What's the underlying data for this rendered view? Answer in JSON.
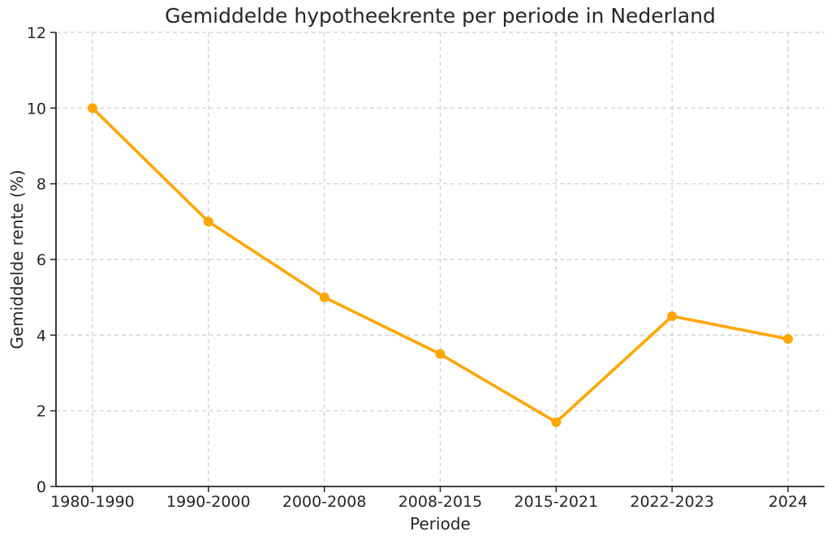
{
  "chart_data": {
    "type": "line",
    "title": "Gemiddelde hypotheekrente per periode in Nederland",
    "xlabel": "Periode",
    "ylabel": "Gemiddelde rente (%)",
    "categories": [
      "1980-1990",
      "1990-2000",
      "2000-2008",
      "2008-2015",
      "2015-2021",
      "2022-2023",
      "2024"
    ],
    "values": [
      10,
      7,
      5,
      3.5,
      1.7,
      4.5,
      3.9
    ],
    "yticks": [
      0,
      2,
      4,
      6,
      8,
      10,
      12
    ],
    "ylim": [
      0,
      12
    ],
    "grid": true,
    "grid_style": "dashed",
    "legend": "none",
    "marker": "circle",
    "colors": {
      "line": "#FFA500",
      "marker": "#FFA500",
      "grid": "#cccccc",
      "axis": "#262626",
      "text": "#262626",
      "background": "#ffffff"
    }
  }
}
